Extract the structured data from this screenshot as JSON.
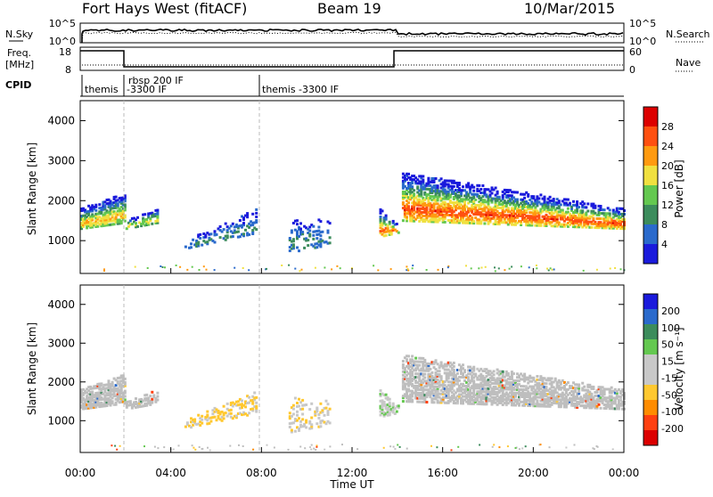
{
  "header": {
    "radar": "Fort Hays West (fitACF)",
    "beam": "Beam 19",
    "date": "10/Mar/2015"
  },
  "side_labels": {
    "nsky": "N.Sky",
    "freq_line1": "Freq.",
    "freq_line2": "[MHz]",
    "cpid": "CPID",
    "nsearch": "N.Search",
    "nave": "Nave"
  },
  "mini_panels": {
    "noise_ticks": [
      "10^5",
      "10^0"
    ],
    "noise_right_ticks": [
      "10^5",
      "10^0"
    ],
    "freq_ticks": [
      "18",
      "8"
    ],
    "nave_ticks": [
      "60",
      "0"
    ]
  },
  "cpid_segments": [
    {
      "start_hour": 0.0,
      "lines": [
        "themis"
      ]
    },
    {
      "start_hour": 2.0,
      "lines": [
        "rbsp 200 IF",
        "-3300 IF"
      ]
    },
    {
      "start_hour": 8.0,
      "lines": [
        "themis -3300 IF"
      ]
    }
  ],
  "colors": {
    "power_scale": [
      "#1a1adc",
      "#2a6acc",
      "#3c8c5c",
      "#64c850",
      "#f0e040",
      "#ff9a10",
      "#ff5010",
      "#dc0000"
    ],
    "velocity_scale": [
      "#dc0000",
      "#ff4010",
      "#ff8c00",
      "#ffc830",
      "#c8c8c8",
      "#c8c8c8",
      "#64c850",
      "#3c8c5c",
      "#2a6acc",
      "#1a1adc"
    ],
    "ground_scatter": "#bebebe"
  },
  "colorbars": {
    "power": {
      "label": "Power [dB]",
      "ticks": [
        "28",
        "24",
        "20",
        "16",
        "12",
        "8",
        "4"
      ]
    },
    "velocity": {
      "label": "Velocity [m s⁻¹]",
      "ticks": [
        "200",
        "100",
        "50",
        "15",
        "-15",
        "-50",
        "-100",
        "-200"
      ]
    }
  },
  "chart_data": [
    {
      "type": "heatmap",
      "title": "Power",
      "xlabel": "",
      "ylabel": "Slant Range [km]",
      "xlim_hours": [
        0,
        24
      ],
      "ylim_km": [
        180,
        4500
      ],
      "y_ticks": [
        1000,
        2000,
        3000,
        4000
      ],
      "grid": false,
      "value_range_db": [
        0,
        30
      ],
      "bands": [
        {
          "t_start": 0.0,
          "t_end": 1.95,
          "r_low_start": 1300,
          "r_low_end": 1450,
          "r_high_start": 1800,
          "r_high_end": 2200,
          "peak_db": 20,
          "density": 0.85
        },
        {
          "t_start": 2.0,
          "t_end": 3.4,
          "r_low_start": 1300,
          "r_low_end": 1450,
          "r_high_start": 1500,
          "r_high_end": 1800,
          "peak_db": 18,
          "density": 0.6
        },
        {
          "t_start": 4.6,
          "t_end": 7.8,
          "r_low_start": 800,
          "r_low_end": 1200,
          "r_high_start": 1000,
          "r_high_end": 1800,
          "peak_db": 8,
          "density": 0.35
        },
        {
          "t_start": 9.2,
          "t_end": 11.0,
          "r_low_start": 700,
          "r_low_end": 900,
          "r_high_start": 1600,
          "r_high_end": 1500,
          "peak_db": 8,
          "density": 0.25
        },
        {
          "t_start": 13.2,
          "t_end": 14.0,
          "r_low_start": 1100,
          "r_low_end": 1200,
          "r_high_start": 1800,
          "r_high_end": 1400,
          "peak_db": 24,
          "density": 0.6
        },
        {
          "t_start": 14.2,
          "t_end": 24.0,
          "r_low_start": 1500,
          "r_low_end": 1300,
          "r_high_start": 2700,
          "r_high_end": 1800,
          "peak_db": 26,
          "density": 0.7
        }
      ],
      "colorbar_ticks_db": [
        4,
        8,
        12,
        16,
        20,
        24,
        28
      ]
    },
    {
      "type": "heatmap",
      "title": "Velocity",
      "xlabel": "Time UT",
      "ylabel": "Slant Range [km]",
      "xlim_hours": [
        0,
        24
      ],
      "ylim_km": [
        180,
        4500
      ],
      "x_ticks": [
        "00:00",
        "04:00",
        "08:00",
        "12:00",
        "16:00",
        "20:00",
        "00:00"
      ],
      "y_ticks": [
        1000,
        2000,
        3000,
        4000
      ],
      "grid": false,
      "value_range_ms": [
        -250,
        250
      ],
      "bands": [
        {
          "t_start": 0.0,
          "t_end": 1.95,
          "r_low_start": 1300,
          "r_low_end": 1450,
          "r_high_start": 1800,
          "r_high_end": 2200,
          "velocity": 0,
          "ground_scatter": true,
          "density": 0.8
        },
        {
          "t_start": 2.0,
          "t_end": 3.4,
          "r_low_start": 1300,
          "r_low_end": 1450,
          "r_high_start": 1500,
          "r_high_end": 1800,
          "velocity": 0,
          "ground_scatter": true,
          "density": 0.6
        },
        {
          "t_start": 4.6,
          "t_end": 7.8,
          "r_low_start": 800,
          "r_low_end": 1200,
          "r_high_start": 1000,
          "r_high_end": 1800,
          "velocity": -60,
          "ground_scatter": false,
          "density": 0.35
        },
        {
          "t_start": 9.2,
          "t_end": 11.0,
          "r_low_start": 700,
          "r_low_end": 900,
          "r_high_start": 1600,
          "r_high_end": 1500,
          "velocity": -40,
          "ground_scatter": false,
          "density": 0.25
        },
        {
          "t_start": 13.2,
          "t_end": 14.0,
          "r_low_start": 1100,
          "r_low_end": 1200,
          "r_high_start": 1800,
          "r_high_end": 1400,
          "velocity": 40,
          "ground_scatter": false,
          "density": 0.6
        },
        {
          "t_start": 14.2,
          "t_end": 24.0,
          "r_low_start": 1500,
          "r_low_end": 1300,
          "r_high_start": 2700,
          "r_high_end": 1800,
          "velocity": 0,
          "ground_scatter": true,
          "density": 0.7
        }
      ],
      "colorbar_ticks_ms": [
        200,
        100,
        50,
        15,
        -15,
        -50,
        -100,
        -200
      ]
    }
  ]
}
